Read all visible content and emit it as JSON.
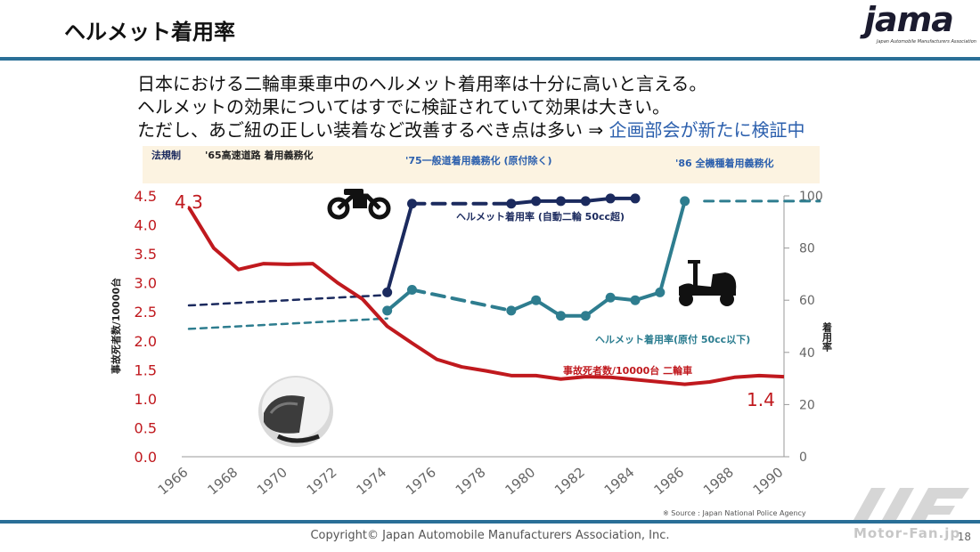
{
  "slide": {
    "title": "ヘルメット着用率",
    "logo_text": "jama",
    "logo_subtitle": "Japan Automobile Manufacturers Association",
    "messages": [
      "日本における二輪車乗車中のヘルメット着用率は十分に高いと言える。",
      "ヘルメットの効果についてはすでに検証されていて効果は大きい。",
      "ただし、あご紐の正しい装着など改善するべき点は多い ⇒ "
    ],
    "message_highlight": "企画部会が新たに検証中",
    "copyright": "Copyright© Japan Automobile Manufacturers Association, Inc.",
    "page_number": "18",
    "source": "※ Source : Japan National Police Agency",
    "watermark": "Motor-Fan.jp"
  },
  "chart_data": {
    "type": "line",
    "x": [
      1966,
      1967,
      1968,
      1969,
      1970,
      1971,
      1972,
      1973,
      1974,
      1975,
      1976,
      1977,
      1978,
      1979,
      1980,
      1981,
      1982,
      1983,
      1984,
      1985,
      1986,
      1987,
      1988,
      1989,
      1990
    ],
    "x_ticks": [
      "1966",
      "1968",
      "1970",
      "1972",
      "1974",
      "1976",
      "1978",
      "1980",
      "1982",
      "1984",
      "1986",
      "1988",
      "1990"
    ],
    "xlim": [
      1966,
      1990
    ],
    "left_axis": {
      "label": "事故死者数/10000台",
      "ylim": [
        0,
        4.5
      ],
      "ticks": [
        "0.0",
        "0.5",
        "1.0",
        "1.5",
        "2.0",
        "2.5",
        "3.0",
        "3.5",
        "4.0",
        "4.5"
      ]
    },
    "right_axis": {
      "label": "着用率",
      "ylim": [
        0,
        100
      ],
      "ticks": [
        "0",
        "20",
        "40",
        "60",
        "80",
        "100"
      ]
    },
    "band": {
      "label": "法規制",
      "events": [
        "'65高速道路 着用義務化",
        "'75一般道着用義務化 (原付除く)",
        "'86 全機種着用義務化"
      ]
    },
    "series": [
      {
        "name": "事故死者数/10000台 二輪車",
        "axis": "left",
        "color": "#c0191e",
        "x": [
          1966,
          1967,
          1968,
          1969,
          1970,
          1971,
          1972,
          1973,
          1974,
          1975,
          1976,
          1977,
          1978,
          1979,
          1980,
          1981,
          1982,
          1983,
          1984,
          1985,
          1986,
          1987,
          1988,
          1989,
          1990
        ],
        "values": [
          4.3,
          3.6,
          3.23,
          3.33,
          3.32,
          3.33,
          3.0,
          2.72,
          2.25,
          1.96,
          1.68,
          1.55,
          1.48,
          1.4,
          1.4,
          1.34,
          1.38,
          1.37,
          1.33,
          1.29,
          1.25,
          1.29,
          1.37,
          1.4,
          1.38
        ],
        "start_label": "4.3",
        "end_label": "1.4"
      },
      {
        "name": "ヘルメット着用率 (自動二輪 50cc超)",
        "axis": "right",
        "color": "#1b2a5e",
        "x": [
          1974,
          1975,
          1979,
          1980,
          1981,
          1982,
          1983,
          1984
        ],
        "values": [
          63,
          97,
          97,
          98,
          98,
          98,
          99,
          99
        ]
      },
      {
        "name": "ヘルメット着用率(原付 50cc以下)",
        "axis": "right",
        "color": "#2e7d8f",
        "x": [
          1974,
          1975,
          1979,
          1980,
          1981,
          1982,
          1983,
          1984,
          1985,
          1986
        ],
        "values": [
          56,
          64,
          56,
          60,
          54,
          54,
          61,
          60,
          63,
          98
        ]
      }
    ],
    "pre_trend_lines": [
      {
        "series": "ヘルメット着用率 (自動二輪 50cc超)",
        "x": [
          1966,
          1974
        ],
        "values": [
          58,
          62
        ]
      },
      {
        "series": "ヘルメット着用率(原付 50cc以下)",
        "x": [
          1966,
          1974
        ],
        "values": [
          49,
          53
        ]
      }
    ],
    "grid": false
  }
}
